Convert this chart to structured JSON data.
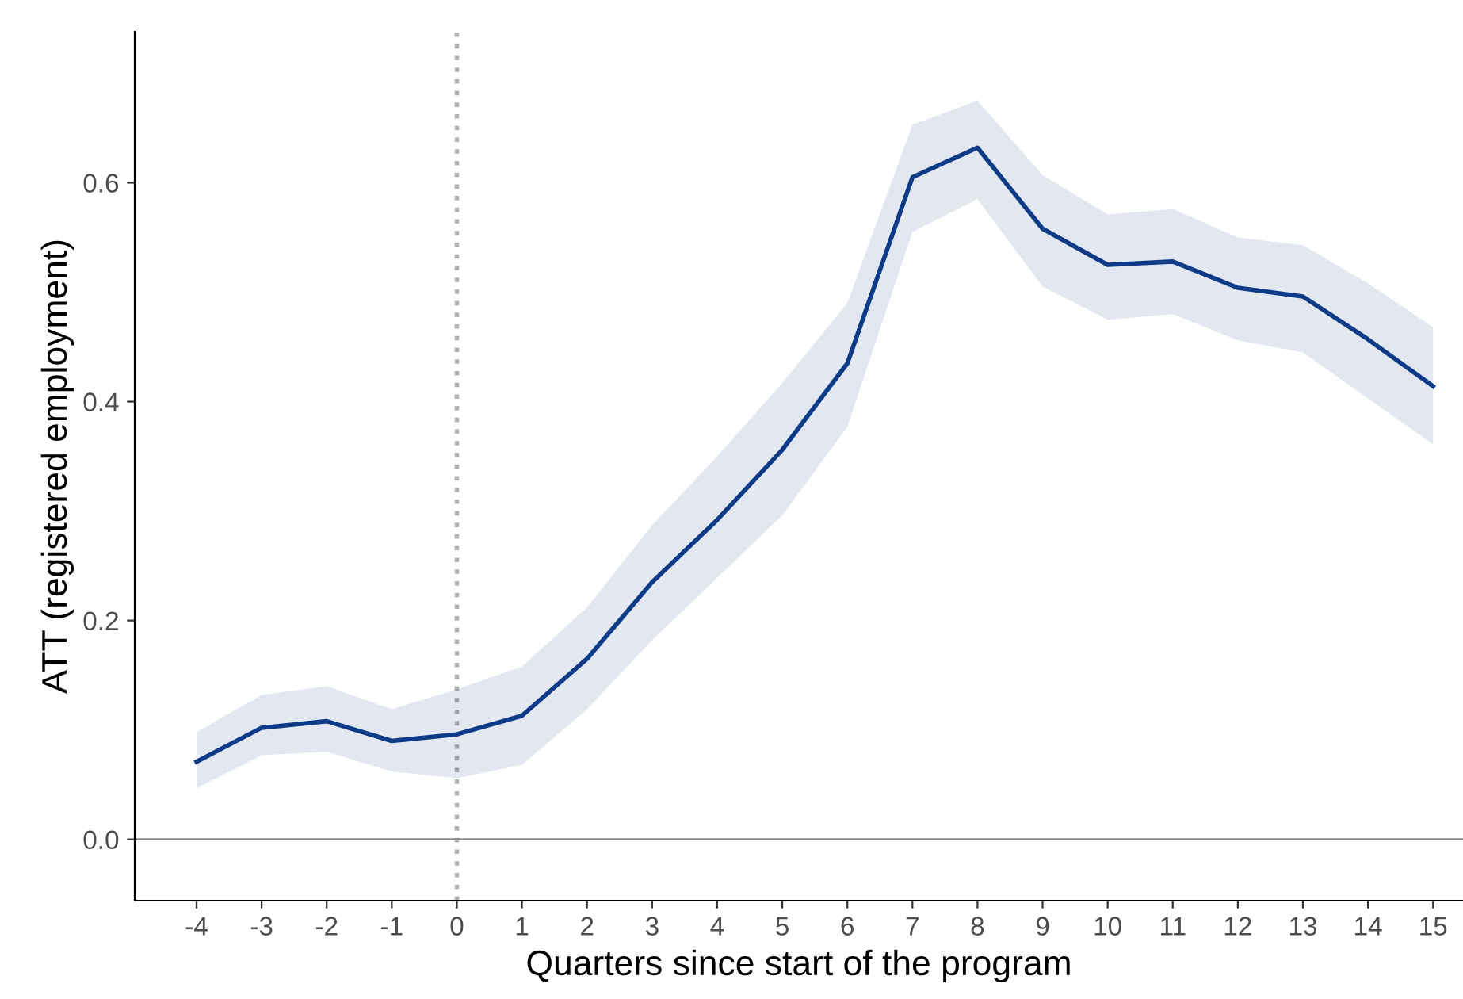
{
  "chart_data": {
    "type": "line",
    "xlabel": "Quarters since start of the program",
    "ylabel": "ATT (registered employment)",
    "x": [
      -4,
      -3,
      -2,
      -1,
      0,
      1,
      2,
      3,
      4,
      5,
      6,
      7,
      8,
      9,
      10,
      11,
      12,
      13,
      14,
      15
    ],
    "series": [
      {
        "color": "#0d3b87",
        "values": [
          0.071,
          0.102,
          0.108,
          0.09,
          0.096,
          0.113,
          0.165,
          0.235,
          0.292,
          0.356,
          0.435,
          0.605,
          0.632,
          0.558,
          0.525,
          0.528,
          0.504,
          0.496,
          0.457,
          0.414
        ],
        "lower": [
          0.047,
          0.077,
          0.08,
          0.062,
          0.056,
          0.068,
          0.119,
          0.182,
          0.239,
          0.296,
          0.377,
          0.555,
          0.585,
          0.505,
          0.475,
          0.48,
          0.456,
          0.445,
          0.403,
          0.361
        ],
        "upper": [
          0.098,
          0.132,
          0.14,
          0.119,
          0.137,
          0.158,
          0.212,
          0.287,
          0.35,
          0.417,
          0.49,
          0.653,
          0.675,
          0.607,
          0.571,
          0.576,
          0.55,
          0.543,
          0.508,
          0.468
        ]
      }
    ],
    "xlim": [
      -4.95,
      15.46
    ],
    "ylim": [
      -0.056,
      0.738
    ],
    "xticks": [
      -4,
      -3,
      -2,
      -1,
      0,
      1,
      2,
      3,
      4,
      5,
      6,
      7,
      8,
      9,
      10,
      11,
      12,
      13,
      14,
      15
    ],
    "yticks": [
      {
        "value": 0,
        "label": "0.0"
      },
      {
        "value": 0.2,
        "label": "0.2"
      },
      {
        "value": 0.4,
        "label": "0.4"
      },
      {
        "value": 0.6,
        "label": "0.6"
      }
    ],
    "ref_lines": [
      {
        "axis": "x",
        "value": 0,
        "color": "#b0b0b0",
        "line_style": "dotted"
      },
      {
        "axis": "y",
        "value": 0,
        "color": "#888888",
        "line_style": "solid"
      }
    ],
    "grid": false,
    "legend": false,
    "line_style": "solid",
    "marker": "none"
  }
}
